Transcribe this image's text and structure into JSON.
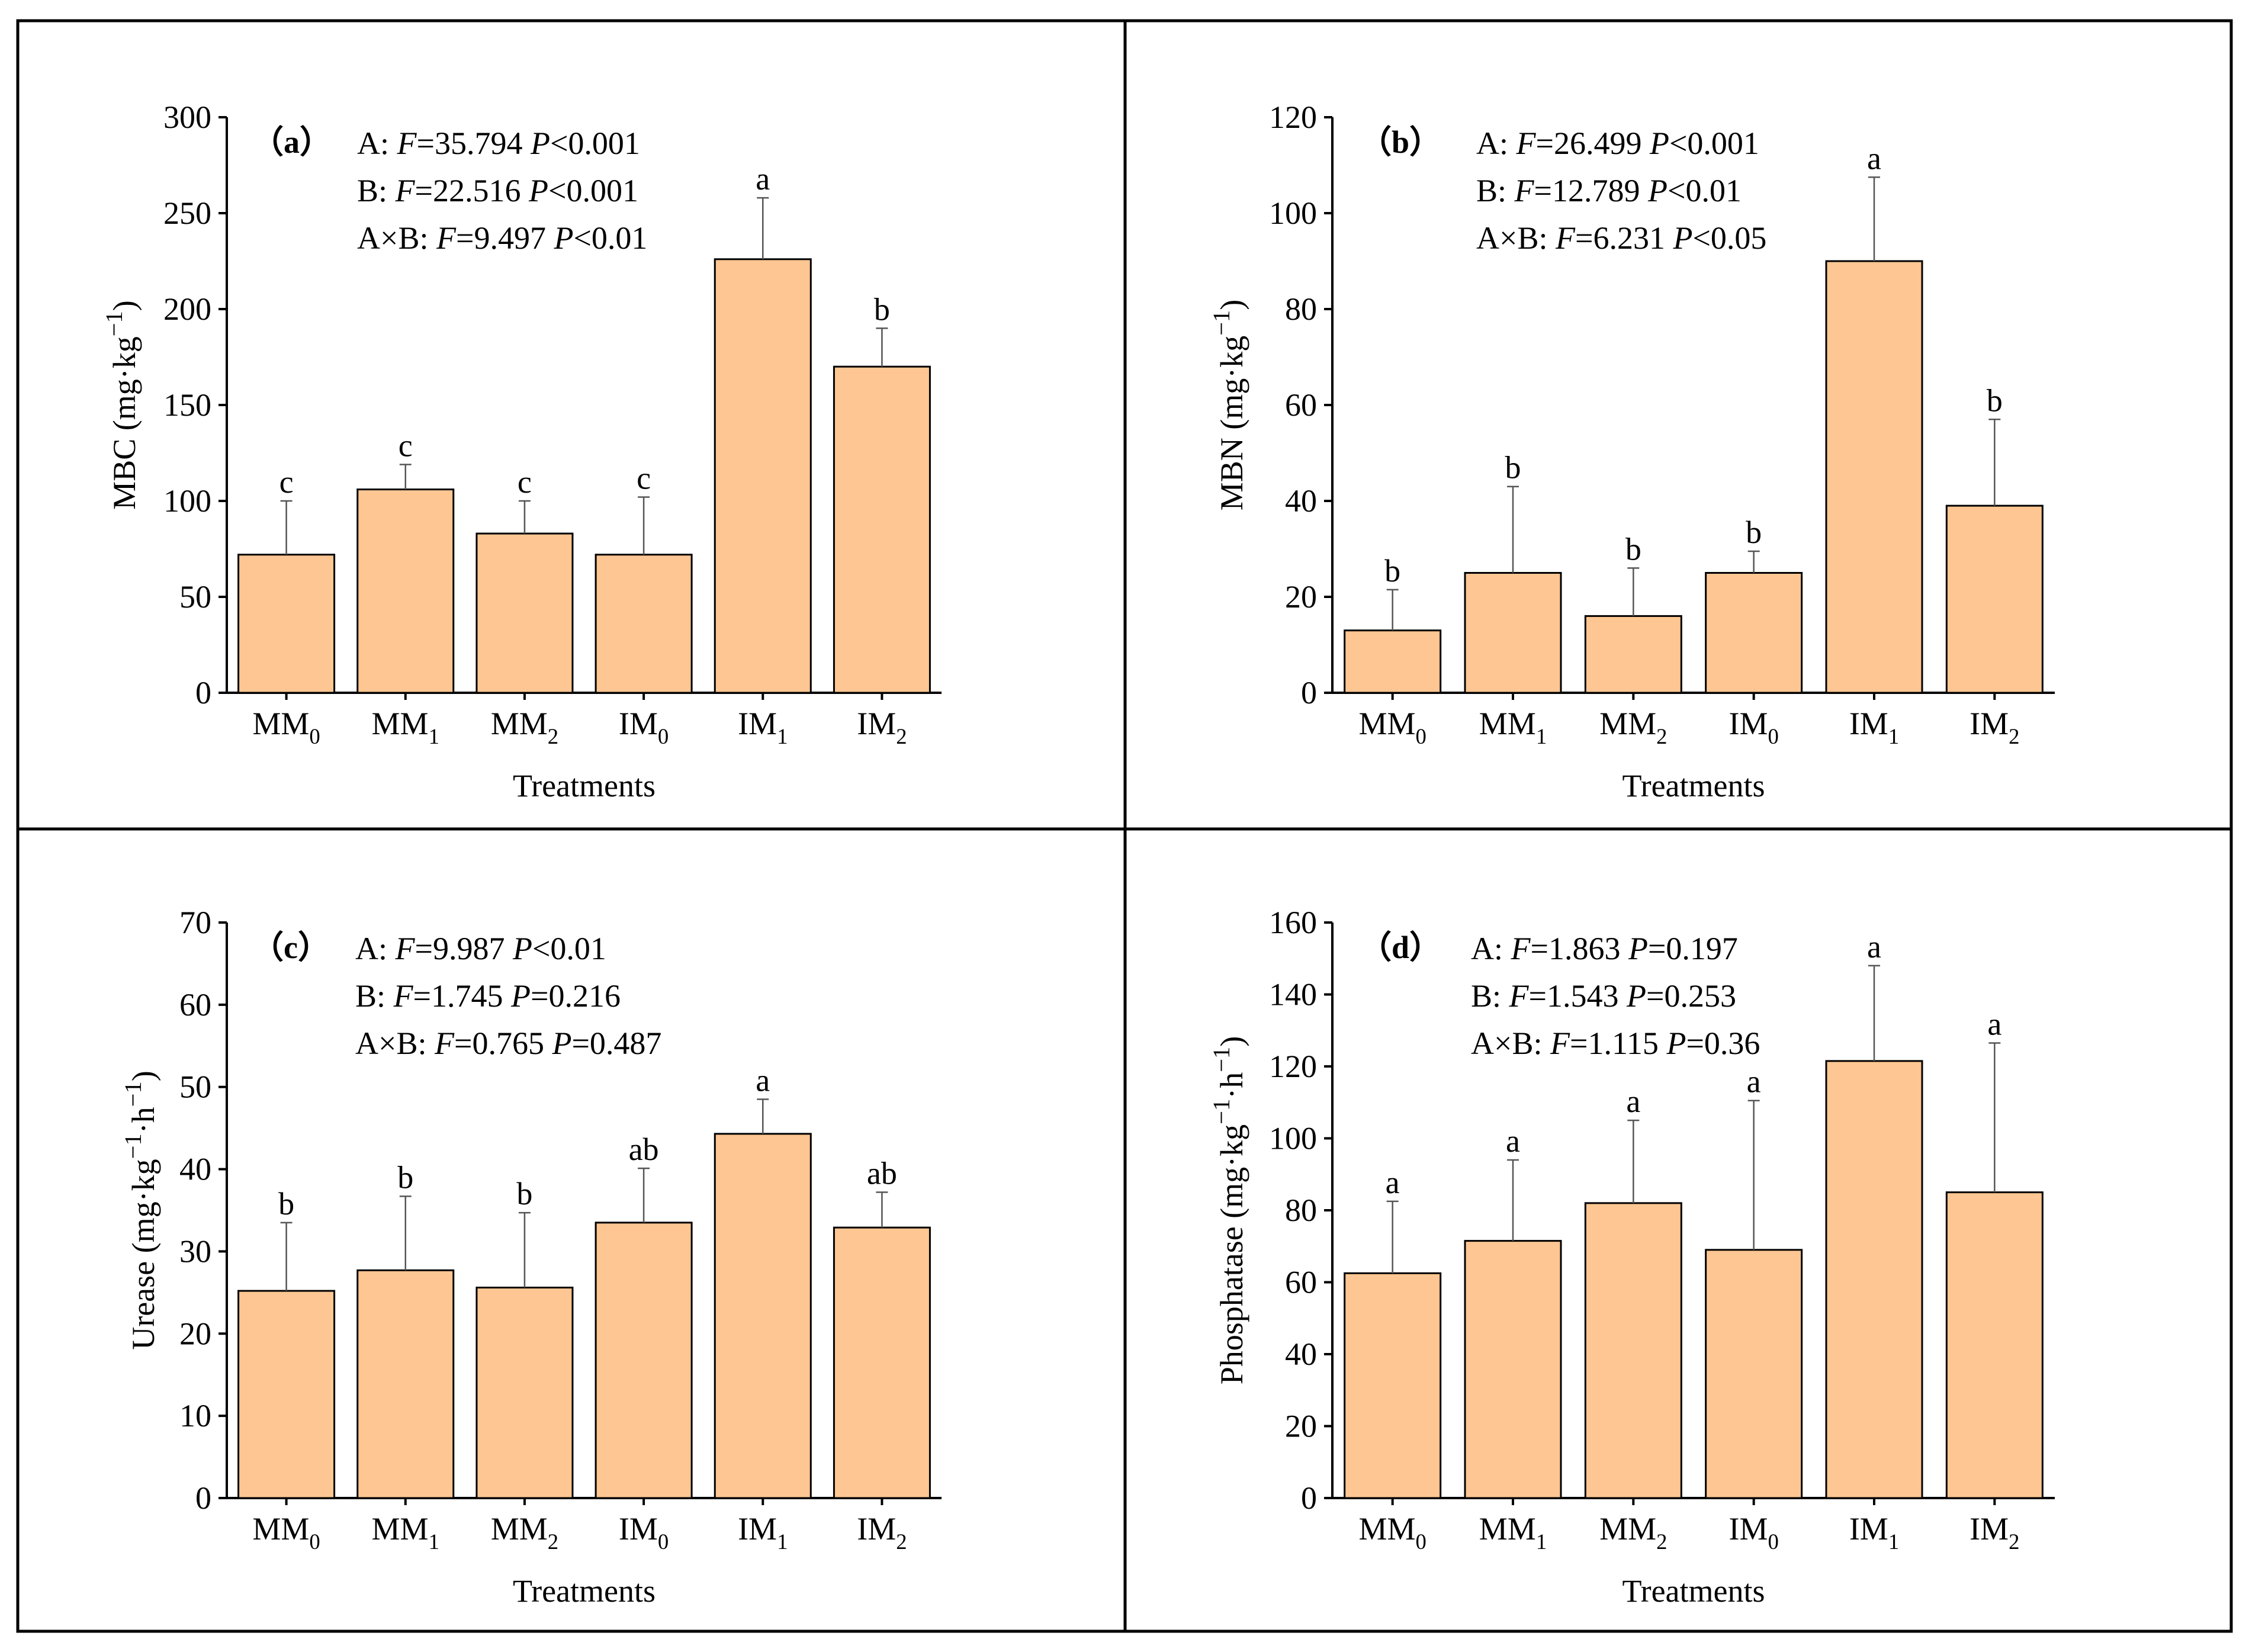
{
  "colors": {
    "bar_fill": "#FDC692",
    "bar_stroke": "#000000",
    "axis": "#000000",
    "error_bar": "#555555"
  },
  "chart_data": [
    {
      "type": "bar",
      "panel_label": "（a）",
      "stats": [
        {
          "prefix": "A: ",
          "f": "35.794",
          "p_op": "<",
          "p": "0.001"
        },
        {
          "prefix": "B: ",
          "f": "22.516",
          "p_op": "<",
          "p": "0.001"
        },
        {
          "prefix": "A×B: ",
          "f": "9.497",
          "p_op": "<",
          "p": "0.01"
        }
      ],
      "ylabel": {
        "main": "MBC (mg·kg",
        "sup": "−1",
        "tail": ")"
      },
      "xlabel": "Treatments",
      "ylim": [
        0,
        300
      ],
      "yticks": [
        0,
        50,
        100,
        150,
        200,
        250,
        300
      ],
      "categories": [
        {
          "base": "MM",
          "sub": "0"
        },
        {
          "base": "MM",
          "sub": "1"
        },
        {
          "base": "MM",
          "sub": "2"
        },
        {
          "base": "IM",
          "sub": "0"
        },
        {
          "base": "IM",
          "sub": "1"
        },
        {
          "base": "IM",
          "sub": "2"
        }
      ],
      "values": [
        72,
        106,
        83,
        72,
        226,
        170
      ],
      "errors": [
        28,
        13,
        17,
        30,
        32,
        20
      ],
      "letters": [
        "c",
        "c",
        "c",
        "c",
        "a",
        "b"
      ]
    },
    {
      "type": "bar",
      "panel_label": "（b）",
      "stats": [
        {
          "prefix": "A: ",
          "f": "26.499",
          "p_op": "<",
          "p": "0.001"
        },
        {
          "prefix": "B: ",
          "f": "12.789",
          "p_op": "<",
          "p": "0.01"
        },
        {
          "prefix": "A×B: ",
          "f": "6.231",
          "p_op": "<",
          "p": "0.05"
        }
      ],
      "ylabel": {
        "main": "MBN (mg·kg",
        "sup": "−1",
        "tail": ")"
      },
      "xlabel": "Treatments",
      "ylim": [
        0,
        120
      ],
      "yticks": [
        0,
        20,
        40,
        60,
        80,
        100,
        120
      ],
      "categories": [
        {
          "base": "MM",
          "sub": "0"
        },
        {
          "base": "MM",
          "sub": "1"
        },
        {
          "base": "MM",
          "sub": "2"
        },
        {
          "base": "IM",
          "sub": "0"
        },
        {
          "base": "IM",
          "sub": "1"
        },
        {
          "base": "IM",
          "sub": "2"
        }
      ],
      "values": [
        13,
        25,
        16,
        25,
        90,
        39
      ],
      "errors": [
        8.5,
        18,
        10,
        4.5,
        17.5,
        18
      ],
      "letters": [
        "b",
        "b",
        "b",
        "b",
        "a",
        "b"
      ]
    },
    {
      "type": "bar",
      "panel_label": "（c）",
      "stats": [
        {
          "prefix": "A: ",
          "f": "9.987",
          "p_op": "<",
          "p": "0.01"
        },
        {
          "prefix": "B: ",
          "f": "1.745",
          "p_op": "=",
          "p": "0.216"
        },
        {
          "prefix": "A×B: ",
          "f": "0.765",
          "p_op": "=",
          "p": "0.487"
        }
      ],
      "ylabel": {
        "main": "Urease (mg·kg",
        "sup": "−1",
        "mid": "·h",
        "sup2": "−1",
        "tail": ")"
      },
      "xlabel": "Treatments",
      "ylim": [
        0,
        70
      ],
      "yticks": [
        0,
        10,
        20,
        30,
        40,
        50,
        60,
        70
      ],
      "categories": [
        {
          "base": "MM",
          "sub": "0"
        },
        {
          "base": "MM",
          "sub": "1"
        },
        {
          "base": "MM",
          "sub": "2"
        },
        {
          "base": "IM",
          "sub": "0"
        },
        {
          "base": "IM",
          "sub": "1"
        },
        {
          "base": "IM",
          "sub": "2"
        }
      ],
      "values": [
        25.2,
        27.7,
        25.6,
        33.5,
        44.3,
        32.9
      ],
      "errors": [
        8.3,
        9.0,
        9.1,
        6.6,
        4.2,
        4.3
      ],
      "letters": [
        "b",
        "b",
        "b",
        "ab",
        "a",
        "ab"
      ]
    },
    {
      "type": "bar",
      "panel_label": "（d）",
      "stats": [
        {
          "prefix": "A: ",
          "f": "1.863",
          "p_op": "=",
          "p": "0.197"
        },
        {
          "prefix": "B: ",
          "f": "1.543",
          "p_op": "=",
          "p": "0.253"
        },
        {
          "prefix": "A×B: ",
          "f": "1.115",
          "p_op": "=",
          "p": "0.36"
        }
      ],
      "ylabel": {
        "main": "Phosphatase (mg·kg",
        "sup": "−1",
        "mid": "·h",
        "sup2": "−1",
        "tail": ")"
      },
      "xlabel": "Treatments",
      "ylim": [
        0,
        160
      ],
      "yticks": [
        0,
        20,
        40,
        60,
        80,
        100,
        120,
        140,
        160
      ],
      "categories": [
        {
          "base": "MM",
          "sub": "0"
        },
        {
          "base": "MM",
          "sub": "1"
        },
        {
          "base": "MM",
          "sub": "2"
        },
        {
          "base": "IM",
          "sub": "0"
        },
        {
          "base": "IM",
          "sub": "1"
        },
        {
          "base": "IM",
          "sub": "2"
        }
      ],
      "values": [
        62.5,
        71.5,
        82,
        69,
        121.5,
        85
      ],
      "errors": [
        20,
        22.5,
        23,
        41.5,
        26.5,
        41.5
      ],
      "letters": [
        "a",
        "a",
        "a",
        "a",
        "a",
        "a"
      ]
    }
  ]
}
